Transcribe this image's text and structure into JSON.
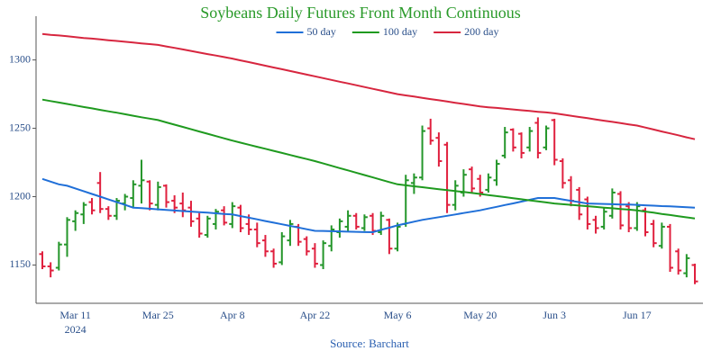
{
  "chart_data": {
    "type": "ohlc",
    "title": "Soybeans Daily Futures Front Month Continuous",
    "source": "Source: Barchart",
    "x_year_label": "2024",
    "categories": [
      null,
      null,
      null,
      null,
      "Mar 11",
      null,
      null,
      null,
      null,
      null,
      null,
      null,
      null,
      null,
      "Mar 25",
      null,
      null,
      null,
      null,
      null,
      null,
      null,
      null,
      "Apr 8",
      null,
      null,
      null,
      null,
      null,
      null,
      null,
      null,
      null,
      "Apr 22",
      null,
      null,
      null,
      null,
      null,
      null,
      null,
      null,
      null,
      "May 6",
      null,
      null,
      null,
      null,
      null,
      null,
      null,
      null,
      null,
      "May 20",
      null,
      null,
      null,
      null,
      null,
      null,
      null,
      null,
      "Jun 3",
      null,
      null,
      null,
      null,
      null,
      null,
      null,
      null,
      null,
      "Jun 17",
      null,
      null,
      null,
      null,
      null,
      null,
      null
    ],
    "open": [
      1158,
      1149,
      1148,
      1165,
      1182,
      1187,
      1196,
      1210,
      1191,
      1186,
      1195,
      1199,
      1208,
      1211,
      1194,
      1208,
      1197,
      1195,
      1192,
      1184,
      1172,
      1180,
      1190,
      1180,
      1192,
      1180,
      1176,
      1168,
      1160,
      1152,
      1168,
      1178,
      1169,
      1162,
      1150,
      1164,
      1174,
      1178,
      1186,
      1177,
      1186,
      1174,
      1183,
      1162,
      1180,
      1210,
      1214,
      1250,
      1243,
      1238,
      1194,
      1203,
      1220,
      1213,
      1205,
      1212,
      1230,
      1249,
      1246,
      1236,
      1254,
      1236,
      1256,
      1226,
      1212,
      1205,
      1198,
      1183,
      1178,
      1186,
      1202,
      1193,
      1177,
      1190,
      1180,
      1164,
      1178,
      1160,
      1144,
      1150
    ],
    "high": [
      1160,
      1152,
      1167,
      1185,
      1190,
      1196,
      1199,
      1218,
      1193,
      1199,
      1202,
      1212,
      1227,
      1212,
      1211,
      1209,
      1201,
      1203,
      1197,
      1188,
      1186,
      1191,
      1193,
      1196,
      1194,
      1187,
      1181,
      1172,
      1162,
      1174,
      1183,
      1180,
      1171,
      1166,
      1168,
      1179,
      1184,
      1190,
      1188,
      1187,
      1188,
      1189,
      1184,
      1181,
      1216,
      1217,
      1252,
      1257,
      1247,
      1240,
      1212,
      1220,
      1222,
      1216,
      1217,
      1227,
      1251,
      1250,
      1247,
      1251,
      1258,
      1252,
      1257,
      1228,
      1215,
      1207,
      1200,
      1186,
      1192,
      1206,
      1204,
      1196,
      1196,
      1192,
      1183,
      1181,
      1180,
      1162,
      1158,
      1151
    ],
    "low": [
      1147,
      1141,
      1146,
      1156,
      1175,
      1180,
      1187,
      1188,
      1183,
      1183,
      1190,
      1192,
      1195,
      1190,
      1190,
      1192,
      1188,
      1185,
      1178,
      1170,
      1170,
      1176,
      1179,
      1177,
      1174,
      1172,
      1163,
      1156,
      1148,
      1150,
      1164,
      1164,
      1157,
      1148,
      1147,
      1160,
      1170,
      1174,
      1176,
      1175,
      1172,
      1172,
      1158,
      1160,
      1178,
      1202,
      1212,
      1238,
      1222,
      1188,
      1190,
      1200,
      1203,
      1200,
      1203,
      1208,
      1228,
      1233,
      1228,
      1233,
      1228,
      1234,
      1223,
      1206,
      1193,
      1183,
      1176,
      1173,
      1176,
      1184,
      1176,
      1174,
      1175,
      1171,
      1163,
      1162,
      1145,
      1143,
      1141,
      1136
    ],
    "close": [
      1149,
      1146,
      1165,
      1183,
      1188,
      1194,
      1190,
      1191,
      1186,
      1197,
      1200,
      1209,
      1212,
      1195,
      1207,
      1196,
      1192,
      1190,
      1182,
      1173,
      1184,
      1189,
      1181,
      1193,
      1177,
      1176,
      1166,
      1160,
      1151,
      1171,
      1180,
      1167,
      1160,
      1151,
      1166,
      1176,
      1182,
      1186,
      1178,
      1185,
      1175,
      1186,
      1162,
      1178,
      1212,
      1214,
      1248,
      1241,
      1226,
      1194,
      1208,
      1216,
      1206,
      1203,
      1214,
      1224,
      1247,
      1236,
      1232,
      1248,
      1232,
      1250,
      1227,
      1210,
      1197,
      1187,
      1180,
      1177,
      1189,
      1203,
      1179,
      1177,
      1193,
      1174,
      1166,
      1178,
      1148,
      1146,
      1155,
      1138
    ],
    "up_color": "#24962a",
    "down_color": "#e0203e",
    "series": [
      {
        "name": "50 day",
        "color": "#1f6fd8",
        "values": [
          1213,
          1211,
          1209,
          1208,
          1206,
          1204,
          1202,
          1200,
          1198,
          1196,
          1194,
          1192,
          1191.6,
          1191.2,
          1190.7,
          1190.3,
          1189.9,
          1189.5,
          1189.1,
          1188.7,
          1188.3,
          1187.8,
          1187.4,
          1187,
          1185.8,
          1184.6,
          1183.4,
          1182.2,
          1181,
          1179.8,
          1178.6,
          1177.4,
          1176.2,
          1175,
          1174.9,
          1174.7,
          1174.6,
          1174.4,
          1174.3,
          1174.1,
          1174,
          1175.7,
          1177.3,
          1179,
          1180.3,
          1181.7,
          1183,
          1184,
          1185,
          1186,
          1187,
          1188,
          1189,
          1190,
          1191.3,
          1192.6,
          1193.9,
          1195.1,
          1196.4,
          1197.7,
          1199,
          1199,
          1199,
          1198,
          1197,
          1196,
          1195,
          1194.8,
          1194.7,
          1194.5,
          1194.3,
          1194.2,
          1194,
          1193.7,
          1193.4,
          1193.1,
          1192.9,
          1192.6,
          1192.3,
          1192
        ]
      },
      {
        "name": "100 day",
        "color": "#1f9a1f",
        "values": [
          1271,
          1269.9,
          1268.9,
          1267.8,
          1266.7,
          1265.6,
          1264.6,
          1263.5,
          1262.4,
          1261.4,
          1260.3,
          1259.2,
          1258.1,
          1257.1,
          1256,
          1254.3,
          1252.7,
          1251,
          1249.3,
          1247.7,
          1246,
          1244.3,
          1242.7,
          1241,
          1239.5,
          1238,
          1236.5,
          1235,
          1233.5,
          1232,
          1230.5,
          1229,
          1227.5,
          1226,
          1224.3,
          1222.6,
          1220.9,
          1219.2,
          1217.5,
          1215.8,
          1214.1,
          1212.4,
          1210.7,
          1209,
          1208.3,
          1207.6,
          1206.9,
          1206.2,
          1205.5,
          1204.8,
          1204.1,
          1203.4,
          1202.7,
          1202,
          1201.2,
          1200.4,
          1199.7,
          1198.9,
          1198.1,
          1197.3,
          1196.6,
          1195.8,
          1195,
          1194.5,
          1194,
          1193.5,
          1193,
          1192.5,
          1192,
          1191.5,
          1191,
          1190.5,
          1190,
          1189.1,
          1188.3,
          1187.4,
          1186.6,
          1185.7,
          1184.9,
          1184
        ]
      },
      {
        "name": "200 day",
        "color": "#d7263f",
        "values": [
          1319,
          1318.4,
          1317.9,
          1317.3,
          1316.7,
          1316.1,
          1315.6,
          1315,
          1314.4,
          1313.9,
          1313.3,
          1312.7,
          1312.1,
          1311.6,
          1311,
          1309.9,
          1308.8,
          1307.7,
          1306.6,
          1305.4,
          1304.3,
          1303.2,
          1302.1,
          1301,
          1299.7,
          1298.4,
          1297.1,
          1295.8,
          1294.5,
          1293.2,
          1291.9,
          1290.6,
          1289.3,
          1288,
          1286.7,
          1285.4,
          1284.1,
          1282.8,
          1281.5,
          1280.2,
          1278.9,
          1277.6,
          1276.3,
          1275,
          1274.1,
          1273.2,
          1272.3,
          1271.4,
          1270.5,
          1269.6,
          1268.7,
          1267.8,
          1266.9,
          1266,
          1265.4,
          1264.9,
          1264.3,
          1263.8,
          1263.2,
          1262.7,
          1262.1,
          1261.6,
          1261,
          1260.1,
          1259.2,
          1258.3,
          1257.4,
          1256.5,
          1255.6,
          1254.7,
          1253.8,
          1252.9,
          1252,
          1250.6,
          1249.1,
          1247.7,
          1246.3,
          1244.9,
          1243.4,
          1242
        ]
      }
    ],
    "ylim": [
      1122,
      1332
    ],
    "yticks": [
      1150,
      1200,
      1250,
      1300
    ],
    "grid": false
  }
}
